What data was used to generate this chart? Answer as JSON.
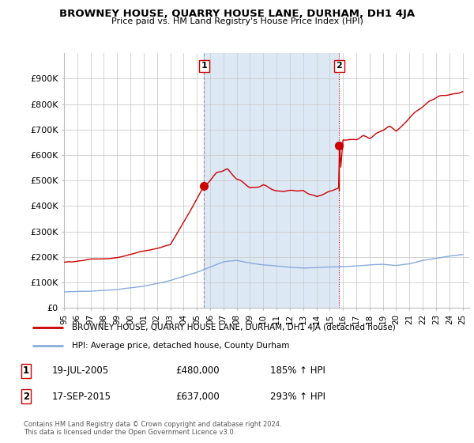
{
  "title": "BROWNEY HOUSE, QUARRY HOUSE LANE, DURHAM, DH1 4JA",
  "subtitle": "Price paid vs. HM Land Registry's House Price Index (HPI)",
  "ylim": [
    0,
    1000000
  ],
  "yticks": [
    0,
    100000,
    200000,
    300000,
    400000,
    500000,
    600000,
    700000,
    800000,
    900000
  ],
  "ytick_labels": [
    "£0",
    "£100K",
    "£200K",
    "£300K",
    "£400K",
    "£500K",
    "£600K",
    "£700K",
    "£800K",
    "£900K"
  ],
  "xlim_start": 1995.0,
  "xlim_end": 2025.5,
  "xticks": [
    1995,
    1996,
    1997,
    1998,
    1999,
    2000,
    2001,
    2002,
    2003,
    2004,
    2005,
    2006,
    2007,
    2008,
    2009,
    2010,
    2011,
    2012,
    2013,
    2014,
    2015,
    2016,
    2017,
    2018,
    2019,
    2020,
    2021,
    2022,
    2023,
    2024,
    2025
  ],
  "xtick_labels": [
    "95",
    "96",
    "97",
    "98",
    "99",
    "00",
    "01",
    "02",
    "03",
    "04",
    "05",
    "06",
    "07",
    "08",
    "09",
    "10",
    "11",
    "12",
    "13",
    "14",
    "15",
    "16",
    "17",
    "18",
    "19",
    "20",
    "21",
    "22",
    "23",
    "24",
    "25"
  ],
  "sale1_x": 2005.54,
  "sale1_y": 480000,
  "sale1_label": "1",
  "sale1_date": "19-JUL-2005",
  "sale1_price": "£480,000",
  "sale1_hpi": "185% ↑ HPI",
  "sale2_x": 2015.71,
  "sale2_y": 637000,
  "sale2_label": "2",
  "sale2_date": "17-SEP-2015",
  "sale2_price": "£637,000",
  "sale2_hpi": "293% ↑ HPI",
  "house_color": "#cc0000",
  "hpi_color": "#88aadd",
  "shade_color": "#dde8f5",
  "legend_house": "BROWNEY HOUSE, QUARRY HOUSE LANE, DURHAM, DH1 4JA (detached house)",
  "legend_hpi": "HPI: Average price, detached house, County Durham",
  "footnote1": "Contains HM Land Registry data © Crown copyright and database right 2024.",
  "footnote2": "This data is licensed under the Open Government Licence v3.0.",
  "background_color": "#ffffff",
  "grid_color": "#cccccc"
}
